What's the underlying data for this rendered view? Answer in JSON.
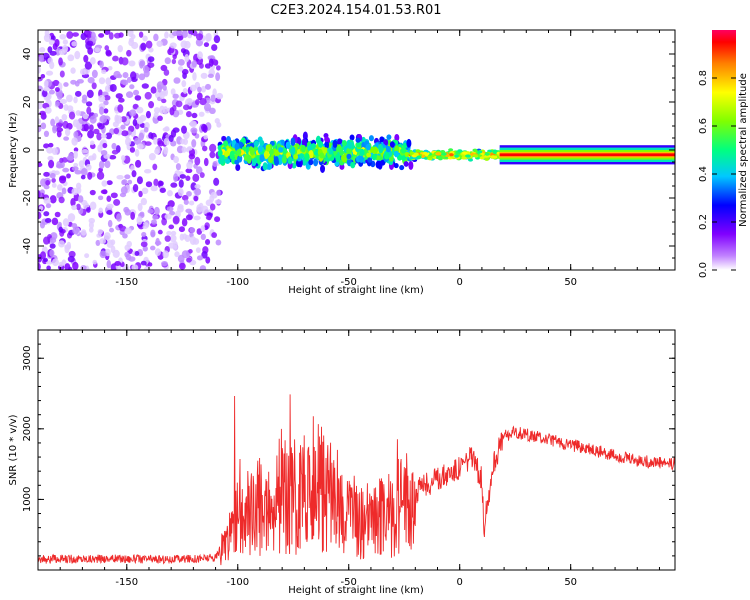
{
  "title": "C2E3.2024.154.01.53.R01",
  "chart_data": [
    {
      "type": "heatmap",
      "xlabel": "Height of straight line (km)",
      "ylabel": "Frequency (Hz)",
      "xlim": [
        -190,
        97
      ],
      "ylim": [
        -50,
        50
      ],
      "xticks": [
        "-150",
        "-100",
        "-50",
        "0",
        "50"
      ],
      "yticks": [
        "-40",
        "-20",
        "0",
        "20",
        "40"
      ],
      "colorbar": {
        "label": "Normalized spectral amplitude",
        "range": [
          0,
          1
        ],
        "ticks": [
          "0.0",
          "0.2",
          "0.4",
          "0.6",
          "0.8"
        ],
        "colormap": [
          "#ffffff",
          "#8000ff",
          "#0000ff",
          "#00ffff",
          "#00ff00",
          "#ffff00",
          "#ff8000",
          "#ff0000",
          "#ff0080"
        ]
      },
      "features": {
        "noise_region_x": [
          -190,
          -108
        ],
        "noise_amplitude": 0.05,
        "scatter_region_x": [
          -108,
          -22
        ],
        "scatter_freq_center": -1,
        "scatter_freq_spread": 6,
        "transition_region_x": [
          -22,
          18
        ],
        "line_region_x": [
          18,
          97
        ],
        "line_frequency": -2,
        "line_amplitude": 0.95
      }
    },
    {
      "type": "line",
      "xlabel": "Height of straight line (km)",
      "ylabel": "SNR (10 * v/v)",
      "xlim": [
        -190,
        97
      ],
      "ylim": [
        0,
        3400
      ],
      "xticks": [
        "-150",
        "-100",
        "-50",
        "0",
        "50"
      ],
      "yticks": [
        "1000",
        "2000",
        "3000"
      ],
      "color": "#ee2a2a",
      "x": [
        -190,
        -160,
        -130,
        -110,
        -108,
        -100,
        -90,
        -80,
        -72,
        -65,
        -60,
        -50,
        -40,
        -30,
        -26,
        -22,
        -18,
        -10,
        0,
        5,
        10,
        11,
        15,
        20,
        25,
        40,
        60,
        80,
        97
      ],
      "values": [
        150,
        160,
        150,
        170,
        300,
        700,
        900,
        1100,
        1000,
        1300,
        1100,
        800,
        700,
        800,
        1000,
        900,
        1150,
        1300,
        1450,
        1600,
        1300,
        600,
        1500,
        1900,
        1950,
        1850,
        1700,
        1550,
        1500
      ]
    }
  ]
}
